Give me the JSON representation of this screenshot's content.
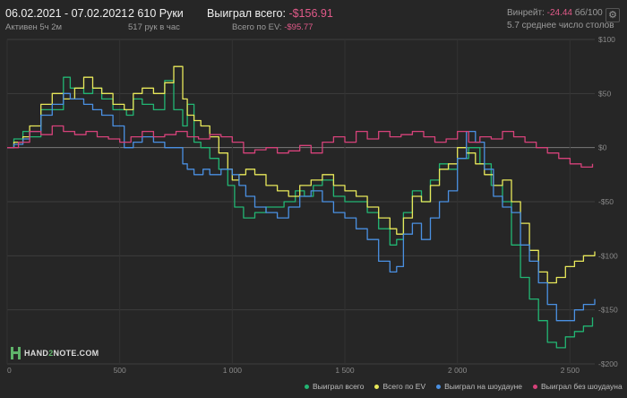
{
  "header": {
    "date_range": "06.02.2021  - 07.02.2021",
    "active": "Активен 5ч 2м",
    "hands": "2 610 Руки",
    "hands_per_hour": "517 рук в час",
    "won_label": "Выиграл всего:",
    "won_value": "-$156.91",
    "ev_label": "Всего по EV:",
    "ev_value": "-$95.77",
    "winrate_label": "Винрейт:",
    "winrate_value": "-24.44",
    "winrate_suffix": "бб/100",
    "tables": "5.7 среднее число столов",
    "settings_icon": "gear-icon"
  },
  "brand": {
    "logo_left": "HAND",
    "logo_mid": "2",
    "logo_right": "NOTE.COM"
  },
  "colors": {
    "background": "#262626",
    "won": "#22b573",
    "ev": "#e8e85a",
    "showdown": "#4a90e2",
    "nonshowdown": "#d6427a"
  },
  "legend": [
    {
      "label": "Выиграл всего",
      "color": "#22b573"
    },
    {
      "label": "Всего по EV",
      "color": "#e8e85a"
    },
    {
      "label": "Выиграл на шоудауне",
      "color": "#4a90e2"
    },
    {
      "label": "Выиграл без шоудауна",
      "color": "#d6427a"
    }
  ],
  "chart_data": {
    "type": "line",
    "xlim": [
      0,
      2610
    ],
    "ylim": [
      -200,
      100
    ],
    "x_ticks": [
      0,
      500,
      1000,
      1500,
      2000,
      2500
    ],
    "x_tick_labels": [
      "0",
      "500",
      "1 000",
      "1 500",
      "2 000",
      "2 500"
    ],
    "y_ticks": [
      100,
      50,
      0,
      -50,
      -100,
      -150,
      -200
    ],
    "y_tick_labels": [
      "$100",
      "$50",
      "$0",
      "-$50",
      "-$100",
      "-$150",
      "-$200"
    ],
    "grid": true,
    "series": [
      {
        "name": "Выиграл всего",
        "color": "#22b573",
        "x": [
          0,
          30,
          70,
          100,
          150,
          250,
          280,
          340,
          380,
          420,
          470,
          530,
          560,
          600,
          650,
          700,
          740,
          780,
          800,
          830,
          860,
          900,
          940,
          980,
          1010,
          1050,
          1100,
          1150,
          1230,
          1280,
          1320,
          1360,
          1400,
          1450,
          1500,
          1550,
          1600,
          1650,
          1700,
          1730,
          1760,
          1800,
          1840,
          1880,
          1920,
          1960,
          2000,
          2050,
          2100,
          2150,
          2200,
          2240,
          2280,
          2320,
          2360,
          2400,
          2440,
          2480,
          2520,
          2560,
          2600
        ],
        "y": [
          0,
          8,
          15,
          10,
          35,
          65,
          55,
          50,
          55,
          45,
          35,
          30,
          45,
          40,
          35,
          62,
          35,
          20,
          40,
          5,
          0,
          -10,
          -20,
          -35,
          -55,
          -65,
          -60,
          -55,
          -50,
          -40,
          -45,
          -35,
          -30,
          -45,
          -50,
          -50,
          -60,
          -75,
          -90,
          -85,
          -60,
          -40,
          -50,
          -30,
          -15,
          -20,
          -10,
          0,
          -15,
          -35,
          -50,
          -90,
          -120,
          -140,
          -160,
          -180,
          -185,
          -175,
          -170,
          -165,
          -157
        ]
      },
      {
        "name": "Всего по EV",
        "color": "#e8e85a",
        "x": [
          0,
          30,
          70,
          100,
          150,
          200,
          250,
          300,
          340,
          380,
          420,
          470,
          520,
          560,
          600,
          650,
          700,
          740,
          780,
          800,
          830,
          860,
          900,
          940,
          980,
          1000,
          1030,
          1060,
          1100,
          1150,
          1200,
          1250,
          1300,
          1350,
          1400,
          1450,
          1500,
          1550,
          1600,
          1650,
          1700,
          1730,
          1760,
          1800,
          1840,
          1880,
          1920,
          1960,
          2000,
          2040,
          2080,
          2120,
          2160,
          2200,
          2240,
          2280,
          2320,
          2360,
          2400,
          2440,
          2480,
          2520,
          2560,
          2610
        ],
        "y": [
          0,
          5,
          10,
          20,
          40,
          50,
          45,
          55,
          65,
          55,
          50,
          40,
          35,
          50,
          55,
          50,
          60,
          75,
          45,
          30,
          25,
          20,
          10,
          -5,
          -20,
          -30,
          -25,
          -20,
          -25,
          -35,
          -40,
          -45,
          -35,
          -30,
          -25,
          -35,
          -40,
          -45,
          -55,
          -65,
          -75,
          -80,
          -65,
          -45,
          -50,
          -35,
          -20,
          -15,
          0,
          -5,
          -15,
          -25,
          -35,
          -30,
          -50,
          -70,
          -95,
          -115,
          -125,
          -120,
          -110,
          -105,
          -100,
          -96
        ]
      },
      {
        "name": "Выиграл на шоудауне",
        "color": "#4a90e2",
        "x": [
          0,
          30,
          70,
          100,
          150,
          200,
          250,
          280,
          340,
          380,
          420,
          470,
          520,
          560,
          600,
          650,
          700,
          740,
          780,
          800,
          830,
          870,
          900,
          950,
          1000,
          1030,
          1060,
          1100,
          1150,
          1200,
          1250,
          1300,
          1350,
          1400,
          1450,
          1500,
          1550,
          1600,
          1650,
          1700,
          1730,
          1760,
          1800,
          1840,
          1880,
          1920,
          1960,
          2000,
          2040,
          2080,
          2120,
          2160,
          2200,
          2240,
          2280,
          2320,
          2360,
          2400,
          2440,
          2480,
          2520,
          2560,
          2610
        ],
        "y": [
          0,
          3,
          8,
          15,
          30,
          40,
          50,
          45,
          40,
          35,
          30,
          20,
          0,
          5,
          10,
          5,
          0,
          0,
          -15,
          -20,
          -25,
          -20,
          -25,
          -20,
          -25,
          -35,
          -45,
          -55,
          -60,
          -65,
          -55,
          -45,
          -40,
          -50,
          -60,
          -65,
          -75,
          -85,
          -105,
          -115,
          -110,
          -80,
          -70,
          -85,
          -65,
          -50,
          -40,
          -10,
          15,
          5,
          -20,
          -45,
          -55,
          -60,
          -90,
          -105,
          -125,
          -145,
          -160,
          -160,
          -150,
          -145,
          -140
        ]
      },
      {
        "name": "Выиграл без шоудауна",
        "color": "#d6427a",
        "x": [
          0,
          50,
          100,
          150,
          200,
          250,
          300,
          350,
          400,
          450,
          500,
          550,
          600,
          650,
          700,
          750,
          800,
          850,
          900,
          950,
          1000,
          1050,
          1100,
          1150,
          1200,
          1250,
          1300,
          1350,
          1400,
          1450,
          1500,
          1550,
          1600,
          1650,
          1700,
          1750,
          1800,
          1850,
          1900,
          1950,
          2000,
          2050,
          2100,
          2150,
          2200,
          2250,
          2300,
          2350,
          2400,
          2450,
          2500,
          2550,
          2600
        ],
        "y": [
          0,
          5,
          15,
          12,
          20,
          15,
          12,
          15,
          10,
          8,
          5,
          10,
          15,
          10,
          12,
          15,
          10,
          8,
          12,
          10,
          5,
          -5,
          -2,
          0,
          -5,
          -3,
          2,
          -5,
          5,
          10,
          5,
          15,
          8,
          15,
          10,
          12,
          15,
          10,
          5,
          8,
          15,
          5,
          10,
          8,
          15,
          10,
          5,
          0,
          -5,
          -10,
          -15,
          -18,
          -15
        ]
      }
    ]
  }
}
